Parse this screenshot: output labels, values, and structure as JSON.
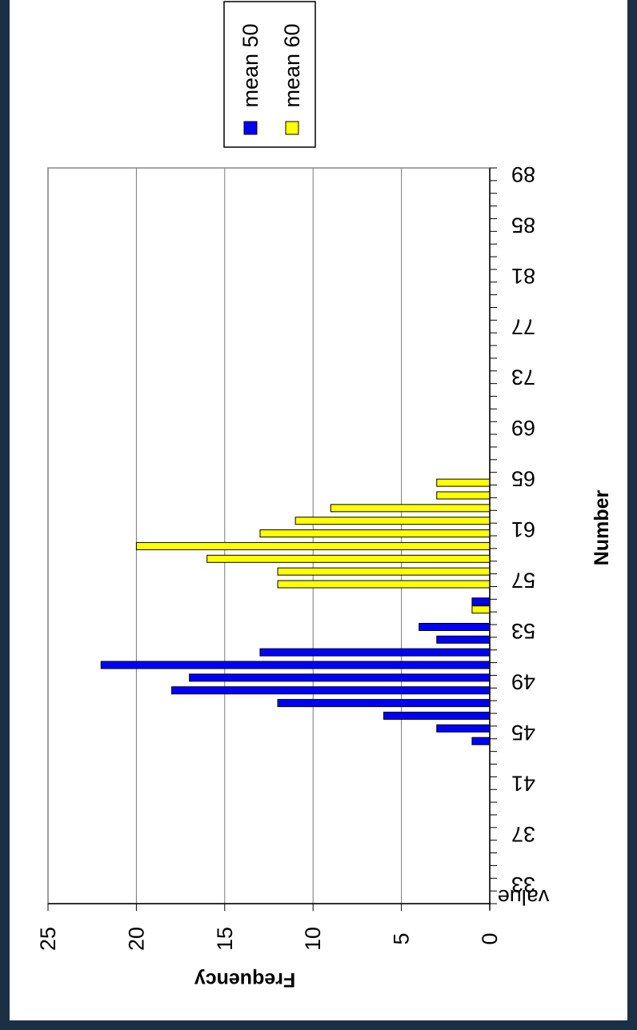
{
  "chart_data": {
    "type": "bar",
    "orientation": "rotated-180-vertical-axis-left",
    "categories": [
      "value",
      "33",
      "34",
      "35",
      "36",
      "37",
      "38",
      "39",
      "40",
      "41",
      "42",
      "43",
      "44",
      "45",
      "46",
      "47",
      "48",
      "49",
      "50",
      "51",
      "52",
      "53",
      "54",
      "55",
      "56",
      "57",
      "58",
      "59",
      "60",
      "61",
      "62",
      "63",
      "64",
      "65",
      "66",
      "67",
      "68",
      "69",
      "70",
      "71",
      "72",
      "73",
      "74",
      "75",
      "76",
      "77",
      "78",
      "79",
      "80",
      "81",
      "82",
      "83",
      "84",
      "85",
      "86",
      "87",
      "88",
      "89"
    ],
    "tick_labels": [
      "value",
      "33",
      "37",
      "41",
      "45",
      "49",
      "53",
      "57",
      "61",
      "65",
      "69",
      "73",
      "77",
      "81",
      "85",
      "89"
    ],
    "series": [
      {
        "name": "mean 50",
        "color": "#0000ff",
        "values": [
          0,
          0,
          0,
          0,
          0,
          0,
          0,
          0,
          0,
          0,
          0,
          0,
          1,
          3,
          6,
          12,
          18,
          17,
          22,
          13,
          3,
          4,
          0,
          1,
          0,
          0,
          0,
          0,
          0,
          0,
          0,
          0,
          0,
          0,
          0,
          0,
          0,
          0,
          0,
          0,
          0,
          0,
          0,
          0,
          0,
          0,
          0,
          0,
          0,
          0,
          0,
          0,
          0,
          0,
          0,
          0,
          0,
          0
        ]
      },
      {
        "name": "mean 60",
        "color": "#ffff00",
        "values": [
          0,
          0,
          0,
          0,
          0,
          0,
          0,
          0,
          0,
          0,
          0,
          0,
          0,
          0,
          0,
          0,
          0,
          0,
          0,
          0,
          0,
          0,
          0,
          1,
          0,
          12,
          12,
          16,
          20,
          13,
          11,
          9,
          3,
          3,
          0,
          0,
          0,
          0,
          0,
          0,
          0,
          0,
          0,
          0,
          0,
          0,
          0,
          0,
          0,
          0,
          0,
          0,
          0,
          0,
          0,
          0,
          0,
          0
        ]
      }
    ],
    "xlabel": "Number",
    "ylabel": "Frequency",
    "ylim": [
      0,
      25
    ],
    "yticks": [
      "0",
      "5",
      "10",
      "15",
      "20",
      "25"
    ],
    "grid": true,
    "legend": "top"
  }
}
